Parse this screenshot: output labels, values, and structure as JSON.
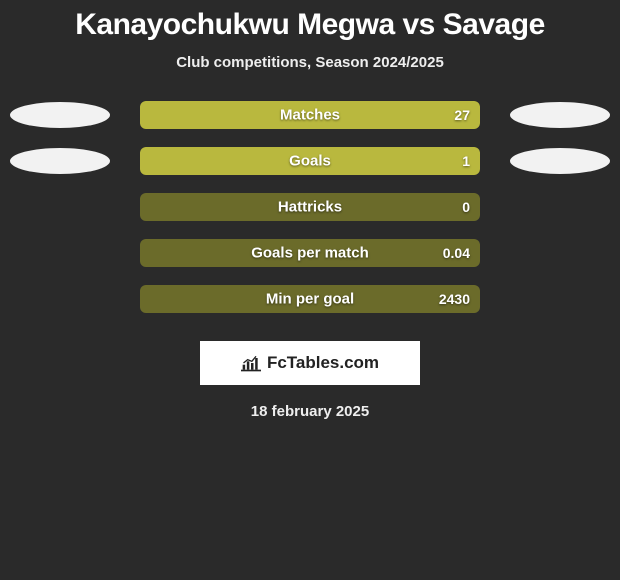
{
  "title": "Kanayochukwu Megwa vs Savage",
  "subtitle": "Club competitions, Season 2024/2025",
  "date": "18 february 2025",
  "logo_text": "FcTables.com",
  "bar_track_color": "#6b6b2a",
  "bar_fill_color": "#b9b83e",
  "text_color": "#ffffff",
  "background_color": "#2a2a2a",
  "stats": [
    {
      "label": "Matches",
      "value": "27",
      "fill_pct": 100,
      "left_oval": true,
      "right_oval": true
    },
    {
      "label": "Goals",
      "value": "1",
      "fill_pct": 100,
      "left_oval": true,
      "right_oval": true
    },
    {
      "label": "Hattricks",
      "value": "0",
      "fill_pct": 0,
      "left_oval": false,
      "right_oval": false
    },
    {
      "label": "Goals per match",
      "value": "0.04",
      "fill_pct": 0,
      "left_oval": false,
      "right_oval": false
    },
    {
      "label": "Min per goal",
      "value": "2430",
      "fill_pct": 0,
      "left_oval": false,
      "right_oval": false
    }
  ]
}
